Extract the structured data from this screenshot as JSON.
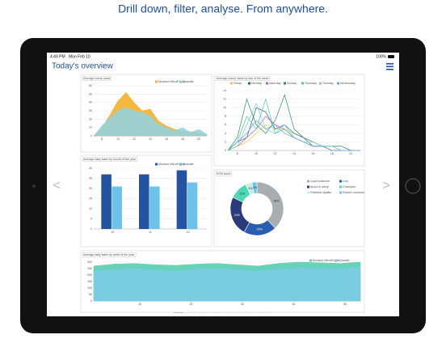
{
  "headline": "Drill down, filter, analyse. From anywhere.",
  "status": {
    "time": "4:49 PM",
    "date": "Mon Feb 10",
    "battery": "100%"
  },
  "screen_title": "Today's overview",
  "chart_data": [
    {
      "type": "area",
      "title": "Average hourly sales",
      "x": [
        7,
        8,
        9,
        10,
        11,
        12,
        13,
        14,
        15,
        16,
        17,
        18,
        19,
        20,
        21
      ],
      "xlim": [
        7,
        21
      ],
      "xticks": [
        8,
        10,
        12,
        14,
        16,
        18,
        20
      ],
      "ylim": [
        0,
        60
      ],
      "yticks": [
        0,
        10,
        20,
        30,
        40,
        50,
        60
      ],
      "grid": true,
      "series": [
        {
          "name": "Montant effectif ligne",
          "color": "#f5b335",
          "values": [
            0,
            10,
            25,
            42,
            52,
            40,
            30,
            32,
            18,
            12,
            8,
            6,
            5,
            4,
            2
          ]
        },
        {
          "name": "Quantité",
          "color": "#8fd3e6",
          "values": [
            0,
            12,
            22,
            30,
            34,
            30,
            28,
            24,
            14,
            10,
            6,
            10,
            4,
            8,
            2
          ]
        }
      ]
    },
    {
      "type": "line",
      "title": "Average hourly sales by day of the week",
      "x": [
        7,
        8,
        9,
        10,
        11,
        12,
        13,
        14,
        15,
        16,
        17,
        18,
        19,
        20,
        21
      ],
      "xlim": [
        7,
        21
      ],
      "xticks": [
        8,
        10,
        12,
        14,
        16,
        18,
        20
      ],
      "ylim": [
        0,
        14
      ],
      "yticks": [
        0,
        2,
        4,
        6,
        8,
        10,
        12,
        14
      ],
      "grid": true,
      "series": [
        {
          "name": "Friday",
          "color": "#f2c744",
          "values": [
            0,
            1,
            2,
            4,
            6,
            5,
            5,
            4,
            3,
            2,
            1,
            1,
            0,
            0,
            0
          ]
        },
        {
          "name": "Monday",
          "color": "#2a5c9a",
          "values": [
            0,
            2,
            3,
            10,
            9,
            5,
            6,
            4,
            3,
            1,
            1,
            0,
            0,
            0,
            0
          ]
        },
        {
          "name": "Saturday",
          "color": "#c257c9",
          "values": [
            0,
            1,
            3,
            5,
            8,
            6,
            5,
            3,
            2,
            1,
            1,
            0,
            0,
            0,
            0
          ]
        },
        {
          "name": "Sunday",
          "color": "#2e8b57",
          "values": [
            0,
            3,
            12,
            6,
            4,
            7,
            13,
            5,
            3,
            2,
            1,
            1,
            1,
            0,
            0
          ]
        },
        {
          "name": "Thursday",
          "color": "#4fc9a0",
          "values": [
            0,
            2,
            8,
            5,
            12,
            4,
            5,
            3,
            2,
            1,
            1,
            1,
            0,
            0,
            0
          ]
        },
        {
          "name": "Tuesday",
          "color": "#74d6c8",
          "values": [
            0,
            1,
            6,
            11,
            5,
            4,
            6,
            3,
            2,
            2,
            1,
            1,
            0,
            0,
            0
          ]
        },
        {
          "name": "Wednesday",
          "color": "#6aa3d8",
          "values": [
            0,
            2,
            4,
            7,
            5,
            6,
            4,
            3,
            2,
            1,
            1,
            0,
            0,
            0,
            0
          ]
        }
      ]
    },
    {
      "type": "bar",
      "title": "Average daily sales by month of the year",
      "categories": [
        "10",
        "11",
        "12"
      ],
      "ylim": [
        0,
        30
      ],
      "yticks": [
        0,
        5,
        10,
        15,
        20,
        25,
        30
      ],
      "grid": true,
      "series": [
        {
          "name": "Montant effectif ligne",
          "color": "#2453a0",
          "values": [
            27,
            27,
            29
          ]
        },
        {
          "name": "Quantité",
          "color": "#6ec1e8",
          "values": [
            21,
            21,
            23
          ]
        }
      ]
    },
    {
      "type": "pie",
      "title": "RFM score",
      "categories": [
        "Loyal customer",
        "Lost",
        "About to sleep",
        "Champion",
        "Potential loyalist",
        "Recent customer"
      ],
      "values": [
        38,
        20,
        24,
        11,
        4,
        3
      ],
      "value_labels": [
        "38%",
        "20%",
        "24%",
        "11%",
        "4%",
        "3%"
      ],
      "colors": [
        "#a8adb2",
        "#2a5db0",
        "#2b3a7a",
        "#4fd6b4",
        "#c5ece6",
        "#6fc5e8"
      ]
    },
    {
      "type": "area",
      "title": "Average daily sales by week of the year",
      "x": [
        1,
        5,
        9,
        13,
        17,
        21,
        25,
        29,
        33,
        37,
        41,
        45,
        49,
        53
      ],
      "xlim": [
        1,
        53
      ],
      "xticks": [
        10,
        20,
        30,
        40,
        50
      ],
      "ylim": [
        0,
        300
      ],
      "yticks": [
        0,
        50,
        100,
        150,
        200,
        250,
        300
      ],
      "grid": true,
      "series": [
        {
          "name": "Montant effectif ligne",
          "color": "#5ed0b4",
          "values": [
            270,
            285,
            290,
            280,
            275,
            285,
            290,
            280,
            270,
            290,
            300,
            295,
            290,
            300
          ]
        },
        {
          "name": "Quantité",
          "color": "#7ecbe8",
          "values": [
            230,
            240,
            250,
            235,
            230,
            245,
            250,
            240,
            230,
            245,
            255,
            250,
            250,
            260
          ]
        }
      ]
    }
  ]
}
